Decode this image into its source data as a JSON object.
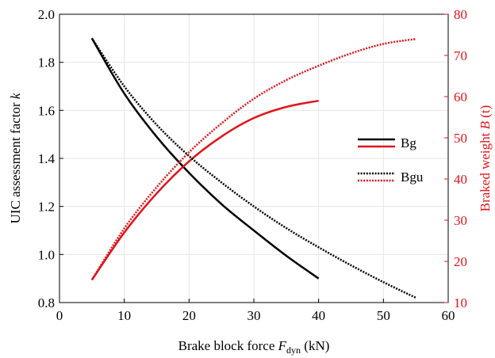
{
  "chart_data": {
    "type": "line",
    "xlabel": {
      "main": "Brake block force ",
      "var": "F",
      "sub": "dyn",
      "unit": " (kN)"
    },
    "ylabel_left": {
      "main": "UIC assessment factor ",
      "var": "k"
    },
    "ylabel_right": {
      "main": "Braked weight ",
      "var": "B",
      "unit": " (t)"
    },
    "xlim": [
      0,
      60
    ],
    "ylim_left": [
      0.8,
      2.0
    ],
    "ylim_right": [
      10,
      80
    ],
    "xticks": [
      "0",
      "10",
      "20",
      "30",
      "40",
      "50",
      "60"
    ],
    "yticks_left": [
      "0.8",
      "1.0",
      "1.2",
      "1.4",
      "1.6",
      "1.8",
      "2.0"
    ],
    "yticks_right": [
      "10",
      "20",
      "30",
      "40",
      "50",
      "60",
      "70",
      "80"
    ],
    "grid": true,
    "legend_placement": "right",
    "colors": {
      "left_axis": "#000000",
      "right_axis": "#e0141b"
    },
    "series": [
      {
        "name": "Bg",
        "axis": "left",
        "color": "#000000",
        "style": "solid",
        "x": [
          5,
          10,
          15,
          20,
          25,
          30,
          35,
          40
        ],
        "y": [
          1.9,
          1.67,
          1.49,
          1.34,
          1.21,
          1.1,
          0.995,
          0.9
        ]
      },
      {
        "name": "Bg",
        "axis": "right",
        "color": "#e0141b",
        "style": "solid",
        "x": [
          5,
          10,
          15,
          20,
          25,
          30,
          35,
          40
        ],
        "y": [
          15.5,
          27,
          36.5,
          44.3,
          50.3,
          54.8,
          57.5,
          59
        ]
      },
      {
        "name": "Bgu",
        "axis": "left",
        "color": "#000000",
        "style": "dotted",
        "x": [
          5,
          10,
          15,
          20,
          25,
          30,
          35,
          40,
          45,
          50,
          55
        ],
        "y": [
          1.9,
          1.7,
          1.54,
          1.41,
          1.3,
          1.2,
          1.11,
          1.03,
          0.955,
          0.885,
          0.82
        ]
      },
      {
        "name": "Bgu",
        "axis": "right",
        "color": "#e0141b",
        "style": "dotted",
        "x": [
          5,
          10,
          15,
          20,
          25,
          30,
          35,
          40,
          45,
          50,
          55
        ],
        "y": [
          15.5,
          28,
          38,
          46.5,
          53.5,
          59.5,
          64,
          67.5,
          70.5,
          72.8,
          74
        ]
      }
    ],
    "legend": [
      {
        "label": "Bg",
        "style": "solid"
      },
      {
        "label": "Bgu",
        "style": "dotted"
      }
    ]
  }
}
